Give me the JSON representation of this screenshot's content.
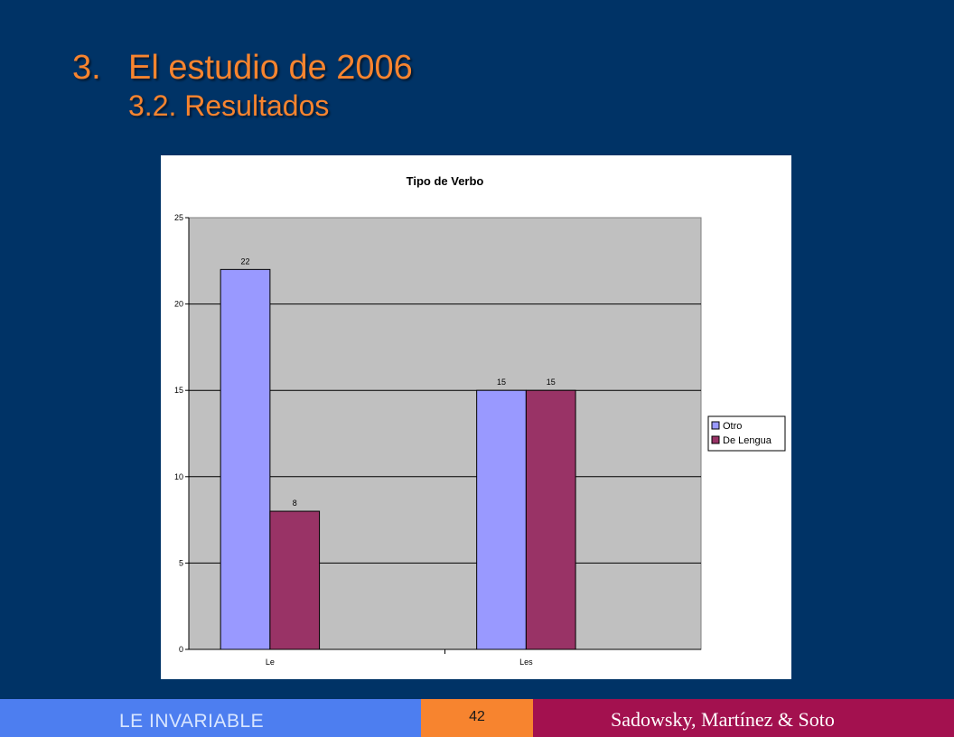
{
  "slide": {
    "title_number": "3.",
    "title": "El estudio de 2006",
    "subtitle": "3.2. Resultados"
  },
  "footer": {
    "left_text": "LE INVARIABLE",
    "page_number": "42",
    "authors": "Sadowsky, Martínez & Soto"
  },
  "colors": {
    "background": "#003366",
    "title": "#f7842f",
    "plot_area": "#c0c0c0",
    "otro": "#9999ff",
    "de_lengua": "#993366"
  },
  "chart_data": {
    "type": "bar",
    "title": "Tipo de Verbo",
    "categories": [
      "Le",
      "Les"
    ],
    "series": [
      {
        "name": "Otro",
        "values": [
          22,
          15
        ],
        "color": "#9999ff"
      },
      {
        "name": "De Lengua",
        "values": [
          8,
          15
        ],
        "color": "#993366"
      }
    ],
    "ylim": [
      0,
      25
    ],
    "yticks": [
      "0",
      "5",
      "10",
      "15",
      "20",
      "25"
    ],
    "grid": true,
    "legend_position": "right"
  }
}
